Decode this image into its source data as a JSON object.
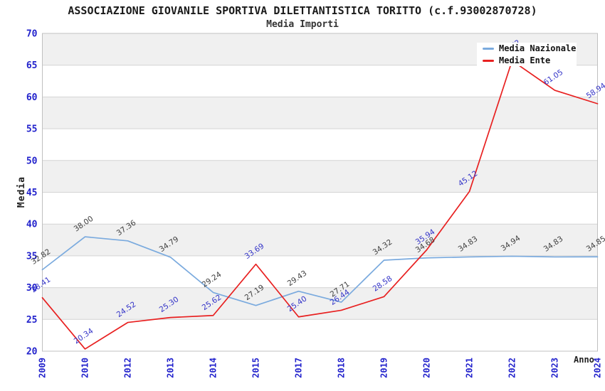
{
  "header": {
    "title": "ASSOCIAZIONE GIOVANILE SPORTIVA DILETTANTISTICA TORITTO (c.f.93002870728)",
    "subtitle": "Media Importi"
  },
  "axes": {
    "y_title": "Media",
    "x_title": "Anno"
  },
  "colors": {
    "tick_label_blue": "#2222cc",
    "band_gray": "#f0f0f0",
    "gridline": "#d4d4d4",
    "plot_border": "#c0c0c0"
  },
  "chart_data": {
    "type": "line",
    "title": "ASSOCIAZIONE GIOVANILE SPORTIVA DILETTANTISTICA TORITTO (c.f.93002870728)",
    "subtitle": "Media Importi",
    "xlabel": "Anno",
    "ylabel": "Media",
    "categories": [
      "2009",
      "2010",
      "2012",
      "2013",
      "2014",
      "2015",
      "2017",
      "2018",
      "2019",
      "2020",
      "2021",
      "2022",
      "2023",
      "2024"
    ],
    "series": [
      {
        "name": "Media Nazionale",
        "color": "#7aaade",
        "label_color": "#3f3f3f",
        "values": [
          32.82,
          38.0,
          37.36,
          34.79,
          29.24,
          27.19,
          29.43,
          27.71,
          34.32,
          34.68,
          34.83,
          34.94,
          34.83,
          34.85
        ]
      },
      {
        "name": "Media Ente",
        "color": "#e82020",
        "label_color": "#3434c8",
        "values": [
          28.41,
          20.34,
          24.52,
          25.3,
          25.62,
          33.69,
          25.4,
          26.44,
          28.58,
          35.94,
          45.12,
          65.72,
          61.05,
          58.94
        ]
      }
    ],
    "ylim": [
      20,
      70
    ],
    "ytick_step": 5,
    "yticks": [
      20,
      25,
      30,
      35,
      40,
      45,
      50,
      55,
      60,
      65,
      70
    ],
    "grid": "horizontal gridlines with alternating gray/white bands",
    "legend_position": "top-right overlay",
    "band_color": "#f0f0f0",
    "notes": "2022 Media Ente label partially hidden behind legend box"
  }
}
